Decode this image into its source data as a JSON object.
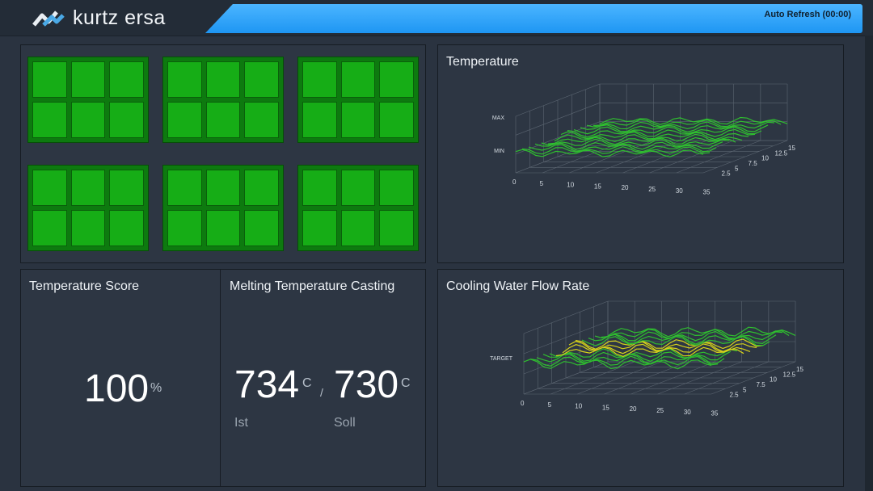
{
  "header": {
    "brand": "kurtz ersa",
    "auto_refresh": "Auto Refresh (00:00)",
    "logo_icon": "kurtz-ersa-logo-icon",
    "accent": "#1e96f3"
  },
  "molds": {
    "count": 6,
    "cells_per_mold": 6,
    "status_color": "#16ad16"
  },
  "temperature_chart": {
    "title": "Temperature",
    "y_labels": [
      "MAX",
      "MIN"
    ],
    "x_ticks": [
      "0",
      "5",
      "10",
      "15",
      "20",
      "25",
      "30",
      "35"
    ],
    "z_ticks": [
      "2.5",
      "5",
      "7.5",
      "10",
      "12.5",
      "15"
    ]
  },
  "flow_chart": {
    "title": "Cooling Water Flow Rate",
    "y_labels": [
      "TARGET"
    ],
    "x_ticks": [
      "0",
      "5",
      "10",
      "15",
      "20",
      "25",
      "30",
      "35"
    ],
    "z_ticks": [
      "2.5",
      "5",
      "7.5",
      "10",
      "12.5",
      "15"
    ]
  },
  "temperature_score": {
    "title": "Temperature Score",
    "value": "100",
    "unit": "%"
  },
  "melting_temperature": {
    "title": "Melting Temperature Casting",
    "actual_value": "734",
    "actual_unit": "C",
    "separator": "/",
    "target_value": "730",
    "target_unit": "C",
    "actual_label": "Ist",
    "target_label": "Soll"
  }
}
